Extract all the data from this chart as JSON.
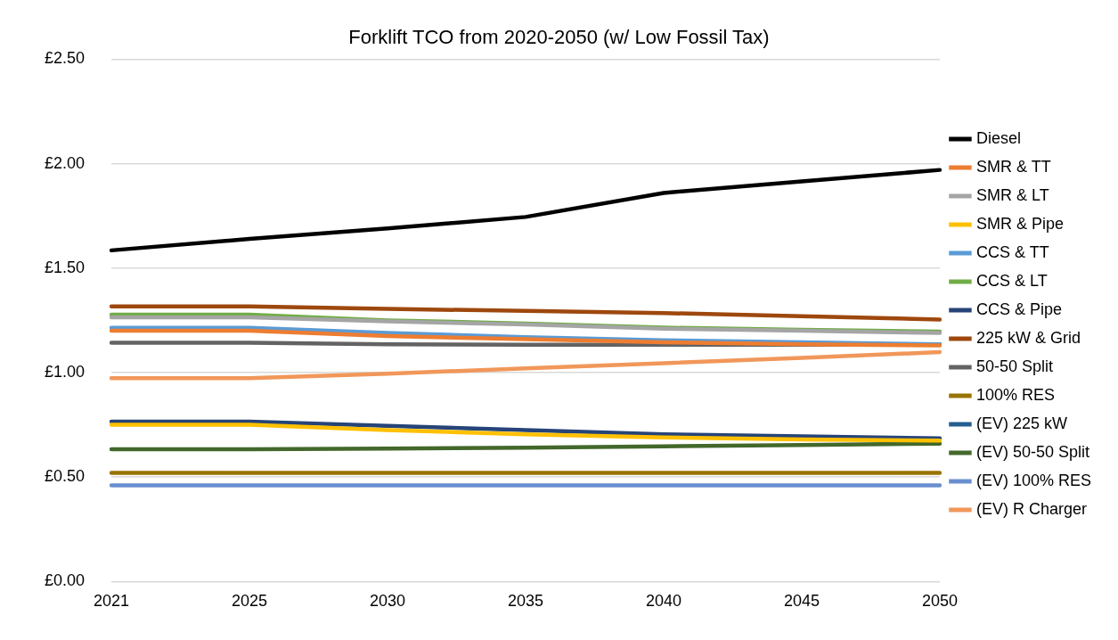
{
  "chart_data": {
    "type": "line",
    "title": "Forklift TCO from 2020-2050 (w/ Low Fossil Tax)",
    "categories": [
      "2021",
      "2025",
      "2030",
      "2035",
      "2040",
      "2045",
      "2050"
    ],
    "series": [
      {
        "name": "Diesel",
        "color": "#000000",
        "values": [
          1.585,
          1.64,
          1.69,
          1.745,
          1.86,
          1.915,
          1.97
        ]
      },
      {
        "name": "SMR & TT",
        "color": "#ed7d31",
        "values": [
          1.2,
          1.2,
          1.175,
          1.16,
          1.145,
          1.135,
          1.13
        ]
      },
      {
        "name": "SMR & LT",
        "color": "#a5a5a5",
        "values": [
          1.265,
          1.265,
          1.245,
          1.23,
          1.21,
          1.2,
          1.19
        ]
      },
      {
        "name": "SMR & Pipe",
        "color": "#ffc000",
        "values": [
          0.75,
          0.75,
          0.725,
          0.705,
          0.69,
          0.68,
          0.675
        ]
      },
      {
        "name": "CCS & TT",
        "color": "#5b9bd5",
        "values": [
          1.214,
          1.214,
          1.19,
          1.17,
          1.155,
          1.145,
          1.135
        ]
      },
      {
        "name": "CCS & LT",
        "color": "#70ad47",
        "values": [
          1.277,
          1.277,
          1.25,
          1.235,
          1.215,
          1.205,
          1.196
        ]
      },
      {
        "name": "CCS & Pipe",
        "color": "#264478",
        "values": [
          0.765,
          0.765,
          0.745,
          0.725,
          0.705,
          0.695,
          0.685
        ]
      },
      {
        "name": "225 kW & Grid",
        "color": "#9e480e",
        "values": [
          1.317,
          1.317,
          1.305,
          1.295,
          1.285,
          1.27,
          1.254
        ]
      },
      {
        "name": "50-50 Split",
        "color": "#636363",
        "values": [
          1.143,
          1.143,
          1.135,
          1.133,
          1.133,
          1.133,
          1.135
        ]
      },
      {
        "name": "100% RES",
        "color": "#997300",
        "values": [
          0.52,
          0.52,
          0.52,
          0.52,
          0.52,
          0.52,
          0.52
        ]
      },
      {
        "name": "(EV) 225 kW",
        "color": "#255e91",
        "values": [
          null,
          null,
          null,
          null,
          null,
          null,
          null
        ]
      },
      {
        "name": "(EV) 50-50 Split",
        "color": "#43682b",
        "values": [
          0.633,
          0.633,
          0.636,
          0.641,
          0.647,
          0.653,
          0.66
        ]
      },
      {
        "name": "(EV) 100% RES",
        "color": "#698ed0",
        "values": [
          0.46,
          0.46,
          0.46,
          0.46,
          0.46,
          0.46,
          0.46
        ]
      },
      {
        "name": "(EV) R Charger",
        "color": "#f1975a",
        "values": [
          0.973,
          0.973,
          0.995,
          1.02,
          1.045,
          1.07,
          1.098
        ]
      }
    ],
    "ylim": [
      0,
      2.5
    ],
    "yticks": [
      {
        "value": 0,
        "label": "£0.00"
      },
      {
        "value": 0.5,
        "label": "£0.50"
      },
      {
        "value": 1,
        "label": "£1.00"
      },
      {
        "value": 1.5,
        "label": "£1.50"
      },
      {
        "value": 2,
        "label": "£2.00"
      },
      {
        "value": 2.5,
        "label": "£2.50"
      }
    ],
    "grid": "y",
    "legend": "right",
    "marker": "none",
    "line_style": "solid"
  }
}
